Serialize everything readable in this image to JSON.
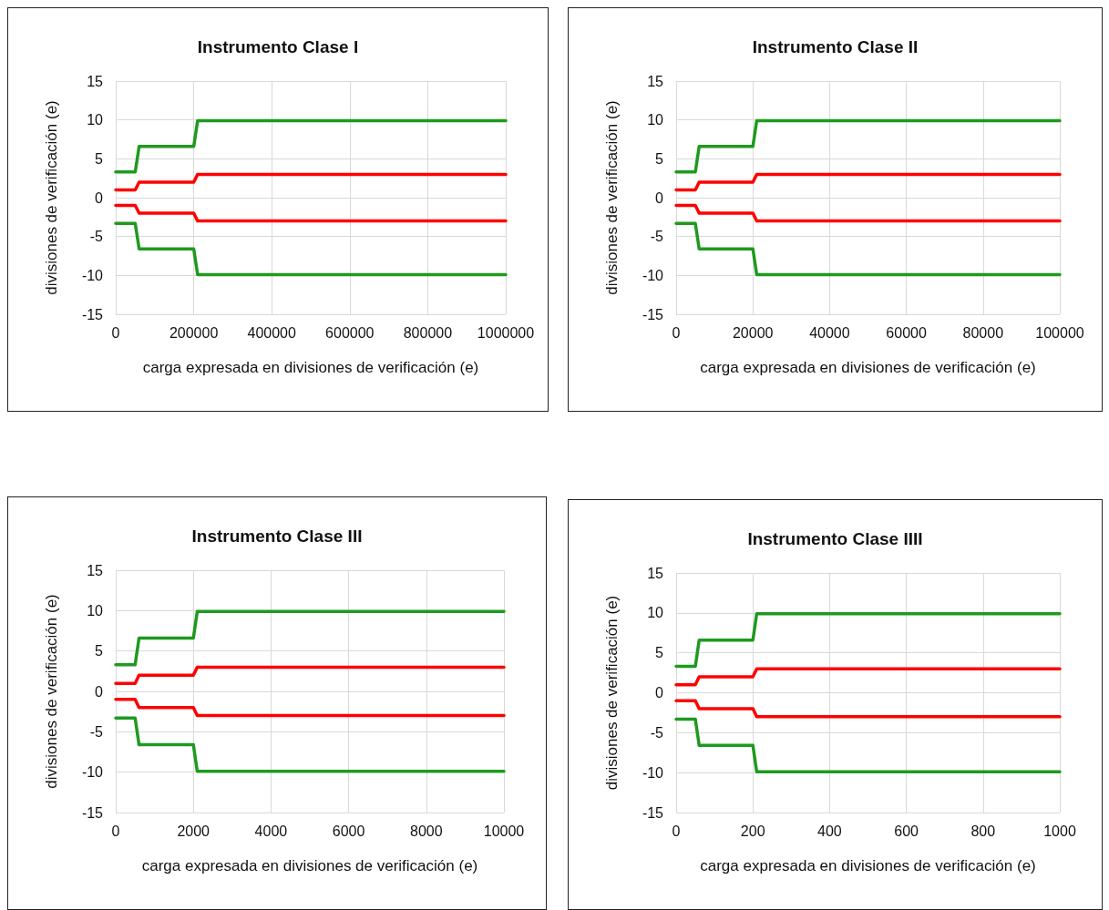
{
  "chart_data": [
    {
      "type": "line",
      "title": "Instrumento Clase I",
      "xlabel": "carga expresada en divisiones de verificación (e)",
      "ylabel": "divisiones de verificación (e)",
      "x": [
        0,
        50000,
        60000,
        200000,
        210000,
        1000000
      ],
      "xlim": [
        0,
        1000000
      ],
      "xticks": [
        0,
        200000,
        400000,
        600000,
        800000,
        1000000
      ],
      "ylim": [
        -15,
        15
      ],
      "yticks": [
        -15,
        -10,
        -5,
        0,
        5,
        10,
        15
      ],
      "grid": true,
      "marker": "none",
      "line_style": "solid",
      "series": [
        {
          "color": "#1e9a1e",
          "values": [
            3.3,
            3.3,
            6.6,
            6.6,
            9.9,
            9.9
          ]
        },
        {
          "color": "#ff0000",
          "values": [
            1,
            1,
            2,
            2,
            3,
            3
          ]
        },
        {
          "color": "#ff0000",
          "values": [
            -1,
            -1,
            -2,
            -2,
            -3,
            -3
          ]
        },
        {
          "color": "#1e9a1e",
          "values": [
            -3.3,
            -3.3,
            -6.6,
            -6.6,
            -9.9,
            -9.9
          ]
        }
      ]
    },
    {
      "type": "line",
      "title": "Instrumento Clase II",
      "xlabel": "carga expresada en divisiones de verificación (e)",
      "ylabel": "divisiones de verificación (e)",
      "x": [
        0,
        5000,
        6000,
        20000,
        21000,
        100000
      ],
      "xlim": [
        0,
        100000
      ],
      "xticks": [
        0,
        20000,
        40000,
        60000,
        80000,
        100000
      ],
      "ylim": [
        -15,
        15
      ],
      "yticks": [
        -15,
        -10,
        -5,
        0,
        5,
        10,
        15
      ],
      "grid": true,
      "marker": "none",
      "line_style": "solid",
      "series": [
        {
          "color": "#1e9a1e",
          "values": [
            3.3,
            3.3,
            6.6,
            6.6,
            9.9,
            9.9
          ]
        },
        {
          "color": "#ff0000",
          "values": [
            1,
            1,
            2,
            2,
            3,
            3
          ]
        },
        {
          "color": "#ff0000",
          "values": [
            -1,
            -1,
            -2,
            -2,
            -3,
            -3
          ]
        },
        {
          "color": "#1e9a1e",
          "values": [
            -3.3,
            -3.3,
            -6.6,
            -6.6,
            -9.9,
            -9.9
          ]
        }
      ]
    },
    {
      "type": "line",
      "title": "Instrumento Clase III",
      "xlabel": "carga expresada en divisiones de verificación (e)",
      "ylabel": "divisiones de verificación (e)",
      "x": [
        0,
        500,
        600,
        2000,
        2100,
        10000
      ],
      "xlim": [
        0,
        10000
      ],
      "xticks": [
        0,
        2000,
        4000,
        6000,
        8000,
        10000
      ],
      "ylim": [
        -15,
        15
      ],
      "yticks": [
        -15,
        -10,
        -5,
        0,
        5,
        10,
        15
      ],
      "grid": true,
      "marker": "none",
      "line_style": "solid",
      "series": [
        {
          "color": "#1e9a1e",
          "values": [
            3.3,
            3.3,
            6.6,
            6.6,
            9.9,
            9.9
          ]
        },
        {
          "color": "#ff0000",
          "values": [
            1,
            1,
            2,
            2,
            3,
            3
          ]
        },
        {
          "color": "#ff0000",
          "values": [
            -1,
            -1,
            -2,
            -2,
            -3,
            -3
          ]
        },
        {
          "color": "#1e9a1e",
          "values": [
            -3.3,
            -3.3,
            -6.6,
            -6.6,
            -9.9,
            -9.9
          ]
        }
      ]
    },
    {
      "type": "line",
      "title": "Instrumento Clase IIII",
      "xlabel": "carga expresada en divisiones de verificación (e)",
      "ylabel": "divisiones de verificación (e)",
      "x": [
        0,
        50,
        60,
        200,
        210,
        1000
      ],
      "xlim": [
        0,
        1000
      ],
      "xticks": [
        0,
        200,
        400,
        600,
        800,
        1000
      ],
      "ylim": [
        -15,
        15
      ],
      "yticks": [
        -15,
        -10,
        -5,
        0,
        5,
        10,
        15
      ],
      "grid": true,
      "marker": "none",
      "line_style": "solid",
      "series": [
        {
          "color": "#1e9a1e",
          "values": [
            3.3,
            3.3,
            6.6,
            6.6,
            9.9,
            9.9
          ]
        },
        {
          "color": "#ff0000",
          "values": [
            1,
            1,
            2,
            2,
            3,
            3
          ]
        },
        {
          "color": "#ff0000",
          "values": [
            -1,
            -1,
            -2,
            -2,
            -3,
            -3
          ]
        },
        {
          "color": "#1e9a1e",
          "values": [
            -3.3,
            -3.3,
            -6.6,
            -6.6,
            -9.9,
            -9.9
          ]
        }
      ]
    }
  ]
}
